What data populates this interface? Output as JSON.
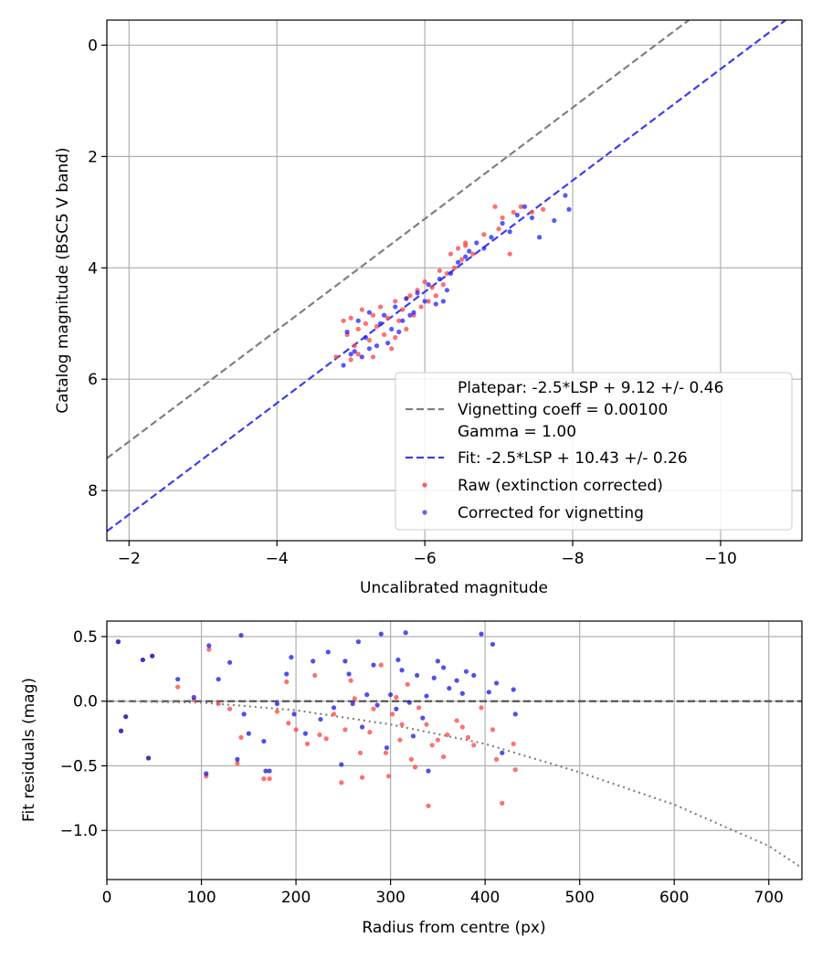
{
  "chart_data": [
    {
      "type": "scatter",
      "xlabel": "Uncalibrated magnitude",
      "ylabel": "Catalog magnitude (BSC5 V band)",
      "xlim": [
        -1.7,
        -11.1
      ],
      "ylim": [
        8.9,
        -0.45
      ],
      "x_ticks": [
        -2,
        -4,
        -6,
        -8,
        -10
      ],
      "x_tick_labels": [
        "−2",
        "−4",
        "−6",
        "−8",
        "−10"
      ],
      "y_ticks": [
        0,
        2,
        4,
        6,
        8
      ],
      "y_tick_labels": [
        "0",
        "2",
        "4",
        "6",
        "8"
      ],
      "grid": true,
      "legend_position": "lower-right",
      "legend": {
        "platepar_lines": [
          "Platepar: -2.5*LSP + 9.12 +/- 0.46",
          "Vignetting coeff = 0.00100",
          "Gamma = 1.00"
        ],
        "fit": "Fit: -2.5*LSP + 10.43 +/- 0.26",
        "raw": "Raw (extinction corrected)",
        "corrected": "Corrected for vignetting"
      },
      "lines": [
        {
          "name": "platepar",
          "style": "dashed",
          "color": "#808080",
          "slope": 1,
          "intercept": 9.12
        },
        {
          "name": "fit",
          "style": "dashed",
          "color": "#3c3cf0",
          "slope": 1,
          "intercept": 10.43
        }
      ],
      "series": [
        {
          "name": "Raw (extinction corrected)",
          "color": "#ff4040",
          "points": [
            [
              -4.9,
              4.95
            ],
            [
              -4.95,
              5.2
            ],
            [
              -5.0,
              4.9
            ],
            [
              -5.05,
              5.4
            ],
            [
              -5.1,
              5.1
            ],
            [
              -5.15,
              4.75
            ],
            [
              -5.2,
              5.0
            ],
            [
              -5.25,
              5.3
            ],
            [
              -5.3,
              4.85
            ],
            [
              -5.35,
              5.05
            ],
            [
              -5.4,
              4.7
            ],
            [
              -5.45,
              5.2
            ],
            [
              -5.5,
              4.9
            ],
            [
              -5.55,
              5.45
            ],
            [
              -5.6,
              4.6
            ],
            [
              -5.65,
              4.95
            ],
            [
              -5.7,
              4.75
            ],
            [
              -5.75,
              5.1
            ],
            [
              -5.8,
              4.5
            ],
            [
              -5.85,
              4.85
            ],
            [
              -5.9,
              4.4
            ],
            [
              -5.95,
              4.7
            ],
            [
              -6.0,
              4.25
            ],
            [
              -6.05,
              4.6
            ],
            [
              -6.1,
              4.35
            ],
            [
              -6.15,
              4.5
            ],
            [
              -6.2,
              4.05
            ],
            [
              -6.25,
              4.3
            ],
            [
              -6.3,
              4.1
            ],
            [
              -6.35,
              3.75
            ],
            [
              -6.4,
              4.0
            ],
            [
              -6.45,
              3.65
            ],
            [
              -6.5,
              3.85
            ],
            [
              -6.55,
              3.55
            ],
            [
              -6.65,
              3.75
            ],
            [
              -6.8,
              3.4
            ],
            [
              -7.0,
              3.3
            ],
            [
              -7.05,
              3.1
            ],
            [
              -7.2,
              3.0
            ],
            [
              -7.3,
              2.9
            ],
            [
              -7.45,
              3.0
            ],
            [
              -7.6,
              2.95
            ],
            [
              -6.95,
              2.9
            ],
            [
              -5.1,
              5.55
            ],
            [
              -5.3,
              5.6
            ],
            [
              -5.0,
              5.65
            ],
            [
              -4.8,
              5.6
            ],
            [
              -5.6,
              5.25
            ],
            [
              -5.75,
              4.55
            ],
            [
              -6.55,
              3.6
            ],
            [
              -7.15,
              3.75
            ]
          ]
        },
        {
          "name": "Corrected for vignetting",
          "color": "#2020ff",
          "points": [
            [
              -4.95,
              5.15
            ],
            [
              -5.05,
              5.5
            ],
            [
              -5.1,
              4.95
            ],
            [
              -5.2,
              5.25
            ],
            [
              -5.25,
              4.8
            ],
            [
              -5.35,
              5.4
            ],
            [
              -5.4,
              5.0
            ],
            [
              -5.45,
              4.85
            ],
            [
              -5.55,
              5.1
            ],
            [
              -5.6,
              4.7
            ],
            [
              -5.7,
              4.95
            ],
            [
              -5.75,
              4.55
            ],
            [
              -5.85,
              4.8
            ],
            [
              -5.9,
              4.45
            ],
            [
              -6.0,
              4.6
            ],
            [
              -6.05,
              4.3
            ],
            [
              -6.15,
              4.65
            ],
            [
              -6.2,
              4.2
            ],
            [
              -6.3,
              4.4
            ],
            [
              -6.35,
              4.1
            ],
            [
              -6.45,
              3.9
            ],
            [
              -6.55,
              3.8
            ],
            [
              -6.6,
              3.7
            ],
            [
              -6.7,
              3.55
            ],
            [
              -6.8,
              3.65
            ],
            [
              -6.9,
              3.45
            ],
            [
              -7.05,
              3.2
            ],
            [
              -7.15,
              3.35
            ],
            [
              -7.25,
              3.05
            ],
            [
              -7.35,
              2.9
            ],
            [
              -7.45,
              3.1
            ],
            [
              -7.55,
              3.45
            ],
            [
              -7.75,
              3.15
            ],
            [
              -7.95,
              2.95
            ],
            [
              -5.0,
              5.55
            ],
            [
              -5.15,
              5.6
            ],
            [
              -5.25,
              5.45
            ],
            [
              -4.9,
              5.75
            ],
            [
              -5.5,
              5.35
            ],
            [
              -5.65,
              5.15
            ],
            [
              -6.25,
              4.6
            ],
            [
              -5.8,
              4.85
            ],
            [
              -7.9,
              2.7
            ]
          ]
        }
      ]
    },
    {
      "type": "scatter",
      "xlabel": "Radius from centre (px)",
      "ylabel": "Fit residuals (mag)",
      "xlim": [
        0,
        735
      ],
      "ylim": [
        -1.38,
        0.62
      ],
      "x_ticks": [
        0,
        100,
        200,
        300,
        400,
        500,
        600,
        700
      ],
      "x_tick_labels": [
        "0",
        "100",
        "200",
        "300",
        "400",
        "500",
        "600",
        "700"
      ],
      "y_ticks": [
        0.5,
        0.0,
        -0.5,
        -1.0
      ],
      "y_tick_labels": [
        "0.5",
        "0.0",
        "−0.5",
        "−1.0"
      ],
      "grid": true,
      "lines": [
        {
          "name": "zero",
          "style": "dashed",
          "color": "#555555",
          "y": 0.0
        },
        {
          "name": "vignetting",
          "style": "dotted",
          "color": "#808080",
          "curve": [
            [
              0,
              0.0
            ],
            [
              100,
              -0.01
            ],
            [
              200,
              -0.07
            ],
            [
              300,
              -0.18
            ],
            [
              400,
              -0.33
            ],
            [
              500,
              -0.55
            ],
            [
              600,
              -0.8
            ],
            [
              700,
              -1.12
            ],
            [
              735,
              -1.29
            ]
          ]
        }
      ],
      "series": [
        {
          "name": "Raw (extinction corrected)",
          "color": "#ff4040",
          "points": [
            [
              12,
              0.46
            ],
            [
              15,
              -0.23
            ],
            [
              20,
              -0.12
            ],
            [
              38,
              0.32
            ],
            [
              44,
              -0.44
            ],
            [
              48,
              0.35
            ],
            [
              75,
              0.11
            ],
            [
              92,
              0.01
            ],
            [
              105,
              -0.58
            ],
            [
              108,
              0.4
            ],
            [
              118,
              -0.02
            ],
            [
              130,
              -0.06
            ],
            [
              138,
              -0.48
            ],
            [
              142,
              -0.28
            ],
            [
              166,
              -0.6
            ],
            [
              172,
              -0.6
            ],
            [
              180,
              -0.08
            ],
            [
              190,
              0.15
            ],
            [
              192,
              -0.17
            ],
            [
              200,
              -0.22
            ],
            [
              212,
              -0.33
            ],
            [
              220,
              0.2
            ],
            [
              225,
              -0.26
            ],
            [
              232,
              -0.29
            ],
            [
              240,
              -0.1
            ],
            [
              248,
              -0.63
            ],
            [
              252,
              -0.22
            ],
            [
              258,
              0.16
            ],
            [
              262,
              0.02
            ],
            [
              268,
              -0.4
            ],
            [
              270,
              -0.59
            ],
            [
              278,
              -0.24
            ],
            [
              282,
              -0.06
            ],
            [
              290,
              0.28
            ],
            [
              295,
              -0.4
            ],
            [
              298,
              -0.58
            ],
            [
              302,
              -0.1
            ],
            [
              306,
              0.03
            ],
            [
              310,
              -0.3
            ],
            [
              312,
              -0.18
            ],
            [
              318,
              0.13
            ],
            [
              322,
              -0.45
            ],
            [
              326,
              -0.51
            ],
            [
              330,
              -0.05
            ],
            [
              338,
              -0.18
            ],
            [
              340,
              -0.81
            ],
            [
              344,
              -0.34
            ],
            [
              350,
              -0.3
            ],
            [
              356,
              -0.43
            ],
            [
              360,
              -0.26
            ],
            [
              370,
              -0.15
            ],
            [
              376,
              -0.2
            ],
            [
              382,
              -0.28
            ],
            [
              388,
              -0.34
            ],
            [
              396,
              -0.05
            ],
            [
              408,
              -0.22
            ],
            [
              412,
              -0.45
            ],
            [
              418,
              -0.79
            ],
            [
              430,
              -0.33
            ],
            [
              432,
              -0.53
            ]
          ]
        },
        {
          "name": "Corrected for vignetting",
          "color": "#1414e6",
          "points": [
            [
              12,
              0.46
            ],
            [
              15,
              -0.23
            ],
            [
              20,
              -0.12
            ],
            [
              38,
              0.32
            ],
            [
              44,
              -0.44
            ],
            [
              48,
              0.35
            ],
            [
              75,
              0.17
            ],
            [
              92,
              0.03
            ],
            [
              105,
              -0.56
            ],
            [
              108,
              0.43
            ],
            [
              118,
              0.17
            ],
            [
              130,
              0.3
            ],
            [
              138,
              -0.45
            ],
            [
              142,
              0.51
            ],
            [
              145,
              -0.1
            ],
            [
              150,
              -0.25
            ],
            [
              166,
              -0.31
            ],
            [
              168,
              -0.54
            ],
            [
              172,
              -0.54
            ],
            [
              180,
              -0.02
            ],
            [
              190,
              0.21
            ],
            [
              195,
              0.34
            ],
            [
              198,
              -0.1
            ],
            [
              210,
              -0.25
            ],
            [
              218,
              0.31
            ],
            [
              226,
              -0.14
            ],
            [
              234,
              0.38
            ],
            [
              240,
              -0.05
            ],
            [
              248,
              -0.49
            ],
            [
              252,
              0.31
            ],
            [
              256,
              0.21
            ],
            [
              260,
              -0.02
            ],
            [
              266,
              0.46
            ],
            [
              270,
              -0.2
            ],
            [
              275,
              0.05
            ],
            [
              282,
              0.28
            ],
            [
              286,
              -0.03
            ],
            [
              290,
              0.52
            ],
            [
              296,
              -0.36
            ],
            [
              300,
              0.05
            ],
            [
              306,
              -0.06
            ],
            [
              308,
              0.32
            ],
            [
              312,
              0.24
            ],
            [
              316,
              0.53
            ],
            [
              320,
              -0.01
            ],
            [
              324,
              -0.27
            ],
            [
              328,
              0.2
            ],
            [
              334,
              -0.13
            ],
            [
              338,
              0.04
            ],
            [
              340,
              -0.54
            ],
            [
              346,
              0.18
            ],
            [
              350,
              0.31
            ],
            [
              356,
              0.26
            ],
            [
              362,
              0.1
            ],
            [
              370,
              0.16
            ],
            [
              376,
              0.06
            ],
            [
              380,
              0.23
            ],
            [
              388,
              0.2
            ],
            [
              396,
              0.52
            ],
            [
              404,
              0.07
            ],
            [
              408,
              0.44
            ],
            [
              412,
              0.14
            ],
            [
              418,
              -0.4
            ],
            [
              430,
              0.09
            ],
            [
              432,
              -0.1
            ]
          ]
        }
      ]
    }
  ]
}
